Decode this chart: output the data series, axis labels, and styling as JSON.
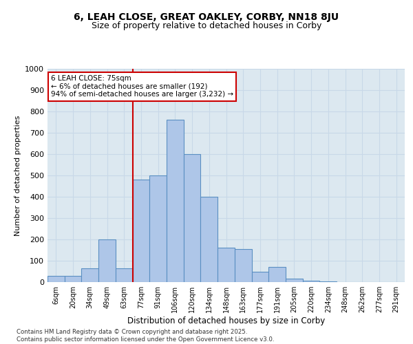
{
  "title1": "6, LEAH CLOSE, GREAT OAKLEY, CORBY, NN18 8JU",
  "title2": "Size of property relative to detached houses in Corby",
  "xlabel": "Distribution of detached houses by size in Corby",
  "ylabel": "Number of detached properties",
  "categories": [
    "6sqm",
    "20sqm",
    "34sqm",
    "49sqm",
    "63sqm",
    "77sqm",
    "91sqm",
    "106sqm",
    "120sqm",
    "134sqm",
    "148sqm",
    "163sqm",
    "177sqm",
    "191sqm",
    "205sqm",
    "220sqm",
    "234sqm",
    "248sqm",
    "262sqm",
    "277sqm",
    "291sqm"
  ],
  "values": [
    30,
    30,
    65,
    200,
    65,
    480,
    500,
    760,
    600,
    400,
    160,
    155,
    50,
    70,
    15,
    5,
    2,
    1,
    0,
    0,
    0
  ],
  "bar_color": "#aec6e8",
  "bar_edge_color": "#5a8fc2",
  "vline_color": "#cc0000",
  "annotation_text": "6 LEAH CLOSE: 75sqm\n← 6% of detached houses are smaller (192)\n94% of semi-detached houses are larger (3,232) →",
  "annotation_box_color": "#cc0000",
  "annotation_bg": "white",
  "grid_color": "#c8d8e8",
  "bg_color": "#dce8f0",
  "footer": "Contains HM Land Registry data © Crown copyright and database right 2025.\nContains public sector information licensed under the Open Government Licence v3.0.",
  "ylim": [
    0,
    1000
  ],
  "yticks": [
    0,
    100,
    200,
    300,
    400,
    500,
    600,
    700,
    800,
    900,
    1000
  ],
  "vline_index": 5
}
